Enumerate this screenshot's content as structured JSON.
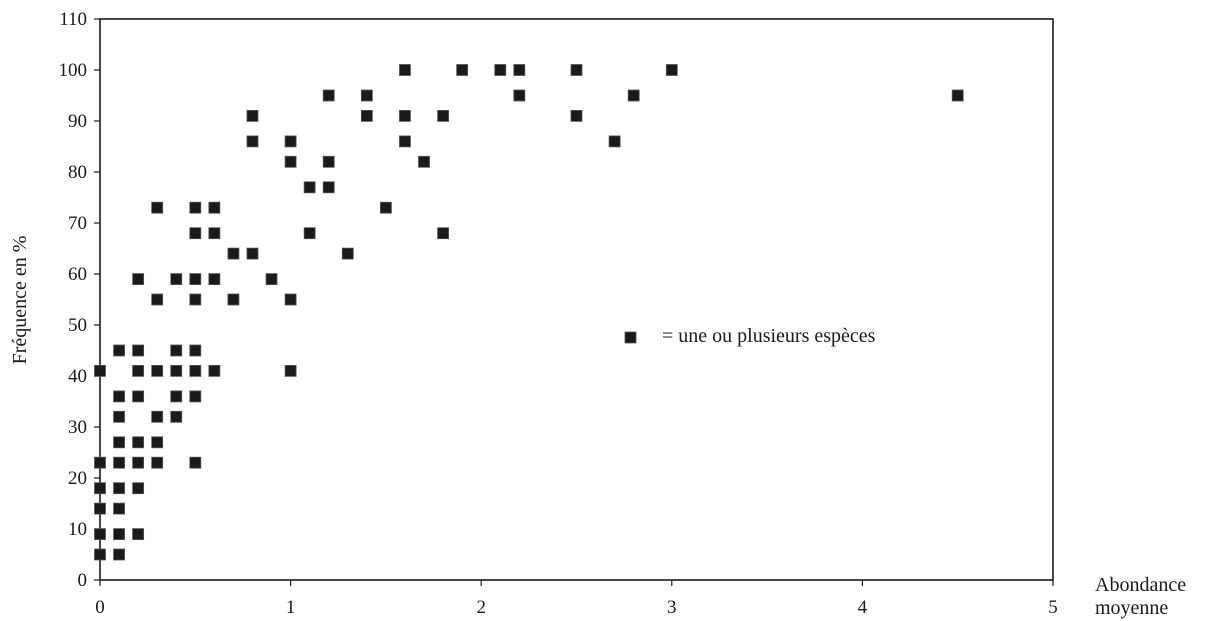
{
  "chart_data": {
    "type": "scatter",
    "title": "",
    "xlabel": [
      "Abondance",
      "moyenne"
    ],
    "ylabel": "Fréquence en %",
    "xlim": [
      0,
      5
    ],
    "ylim": [
      0,
      110
    ],
    "xticks": [
      0,
      1,
      2,
      3,
      4,
      5
    ],
    "yticks": [
      0,
      10,
      20,
      30,
      40,
      50,
      60,
      70,
      80,
      90,
      100,
      110
    ],
    "grid": false,
    "legend": {
      "placement": "center-right",
      "label": "= une ou plusieurs espèces"
    },
    "series": [
      {
        "marker": "square",
        "color": "#1a1a1a",
        "points": [
          [
            0,
            5
          ],
          [
            0,
            9
          ],
          [
            0,
            14
          ],
          [
            0,
            18
          ],
          [
            0,
            23
          ],
          [
            0,
            41
          ],
          [
            0.1,
            5
          ],
          [
            0.1,
            9
          ],
          [
            0.1,
            14
          ],
          [
            0.1,
            18
          ],
          [
            0.1,
            23
          ],
          [
            0.1,
            27
          ],
          [
            0.1,
            32
          ],
          [
            0.1,
            36
          ],
          [
            0.1,
            45
          ],
          [
            0.2,
            9
          ],
          [
            0.2,
            18
          ],
          [
            0.2,
            23
          ],
          [
            0.2,
            27
          ],
          [
            0.2,
            36
          ],
          [
            0.2,
            41
          ],
          [
            0.2,
            45
          ],
          [
            0.2,
            59
          ],
          [
            0.3,
            23
          ],
          [
            0.3,
            27
          ],
          [
            0.3,
            32
          ],
          [
            0.3,
            41
          ],
          [
            0.3,
            55
          ],
          [
            0.3,
            73
          ],
          [
            0.4,
            32
          ],
          [
            0.4,
            36
          ],
          [
            0.4,
            41
          ],
          [
            0.4,
            45
          ],
          [
            0.4,
            59
          ],
          [
            0.5,
            23
          ],
          [
            0.5,
            36
          ],
          [
            0.5,
            41
          ],
          [
            0.5,
            45
          ],
          [
            0.5,
            55
          ],
          [
            0.5,
            59
          ],
          [
            0.5,
            68
          ],
          [
            0.5,
            73
          ],
          [
            0.6,
            41
          ],
          [
            0.6,
            59
          ],
          [
            0.6,
            68
          ],
          [
            0.6,
            73
          ],
          [
            0.7,
            55
          ],
          [
            0.7,
            64
          ],
          [
            0.8,
            64
          ],
          [
            0.8,
            86
          ],
          [
            0.8,
            91
          ],
          [
            0.9,
            59
          ],
          [
            1.0,
            41
          ],
          [
            1.0,
            55
          ],
          [
            1.0,
            82
          ],
          [
            1.0,
            86
          ],
          [
            1.1,
            68
          ],
          [
            1.1,
            77
          ],
          [
            1.2,
            77
          ],
          [
            1.2,
            82
          ],
          [
            1.2,
            95
          ],
          [
            1.3,
            64
          ],
          [
            1.4,
            91
          ],
          [
            1.4,
            95
          ],
          [
            1.5,
            73
          ],
          [
            1.6,
            86
          ],
          [
            1.6,
            91
          ],
          [
            1.6,
            100
          ],
          [
            1.7,
            82
          ],
          [
            1.8,
            68
          ],
          [
            1.8,
            91
          ],
          [
            1.9,
            100
          ],
          [
            2.1,
            100
          ],
          [
            2.2,
            95
          ],
          [
            2.2,
            100
          ],
          [
            2.5,
            91
          ],
          [
            2.5,
            100
          ],
          [
            2.7,
            86
          ],
          [
            2.8,
            95
          ],
          [
            3.0,
            100
          ],
          [
            4.5,
            95
          ]
        ]
      }
    ]
  }
}
